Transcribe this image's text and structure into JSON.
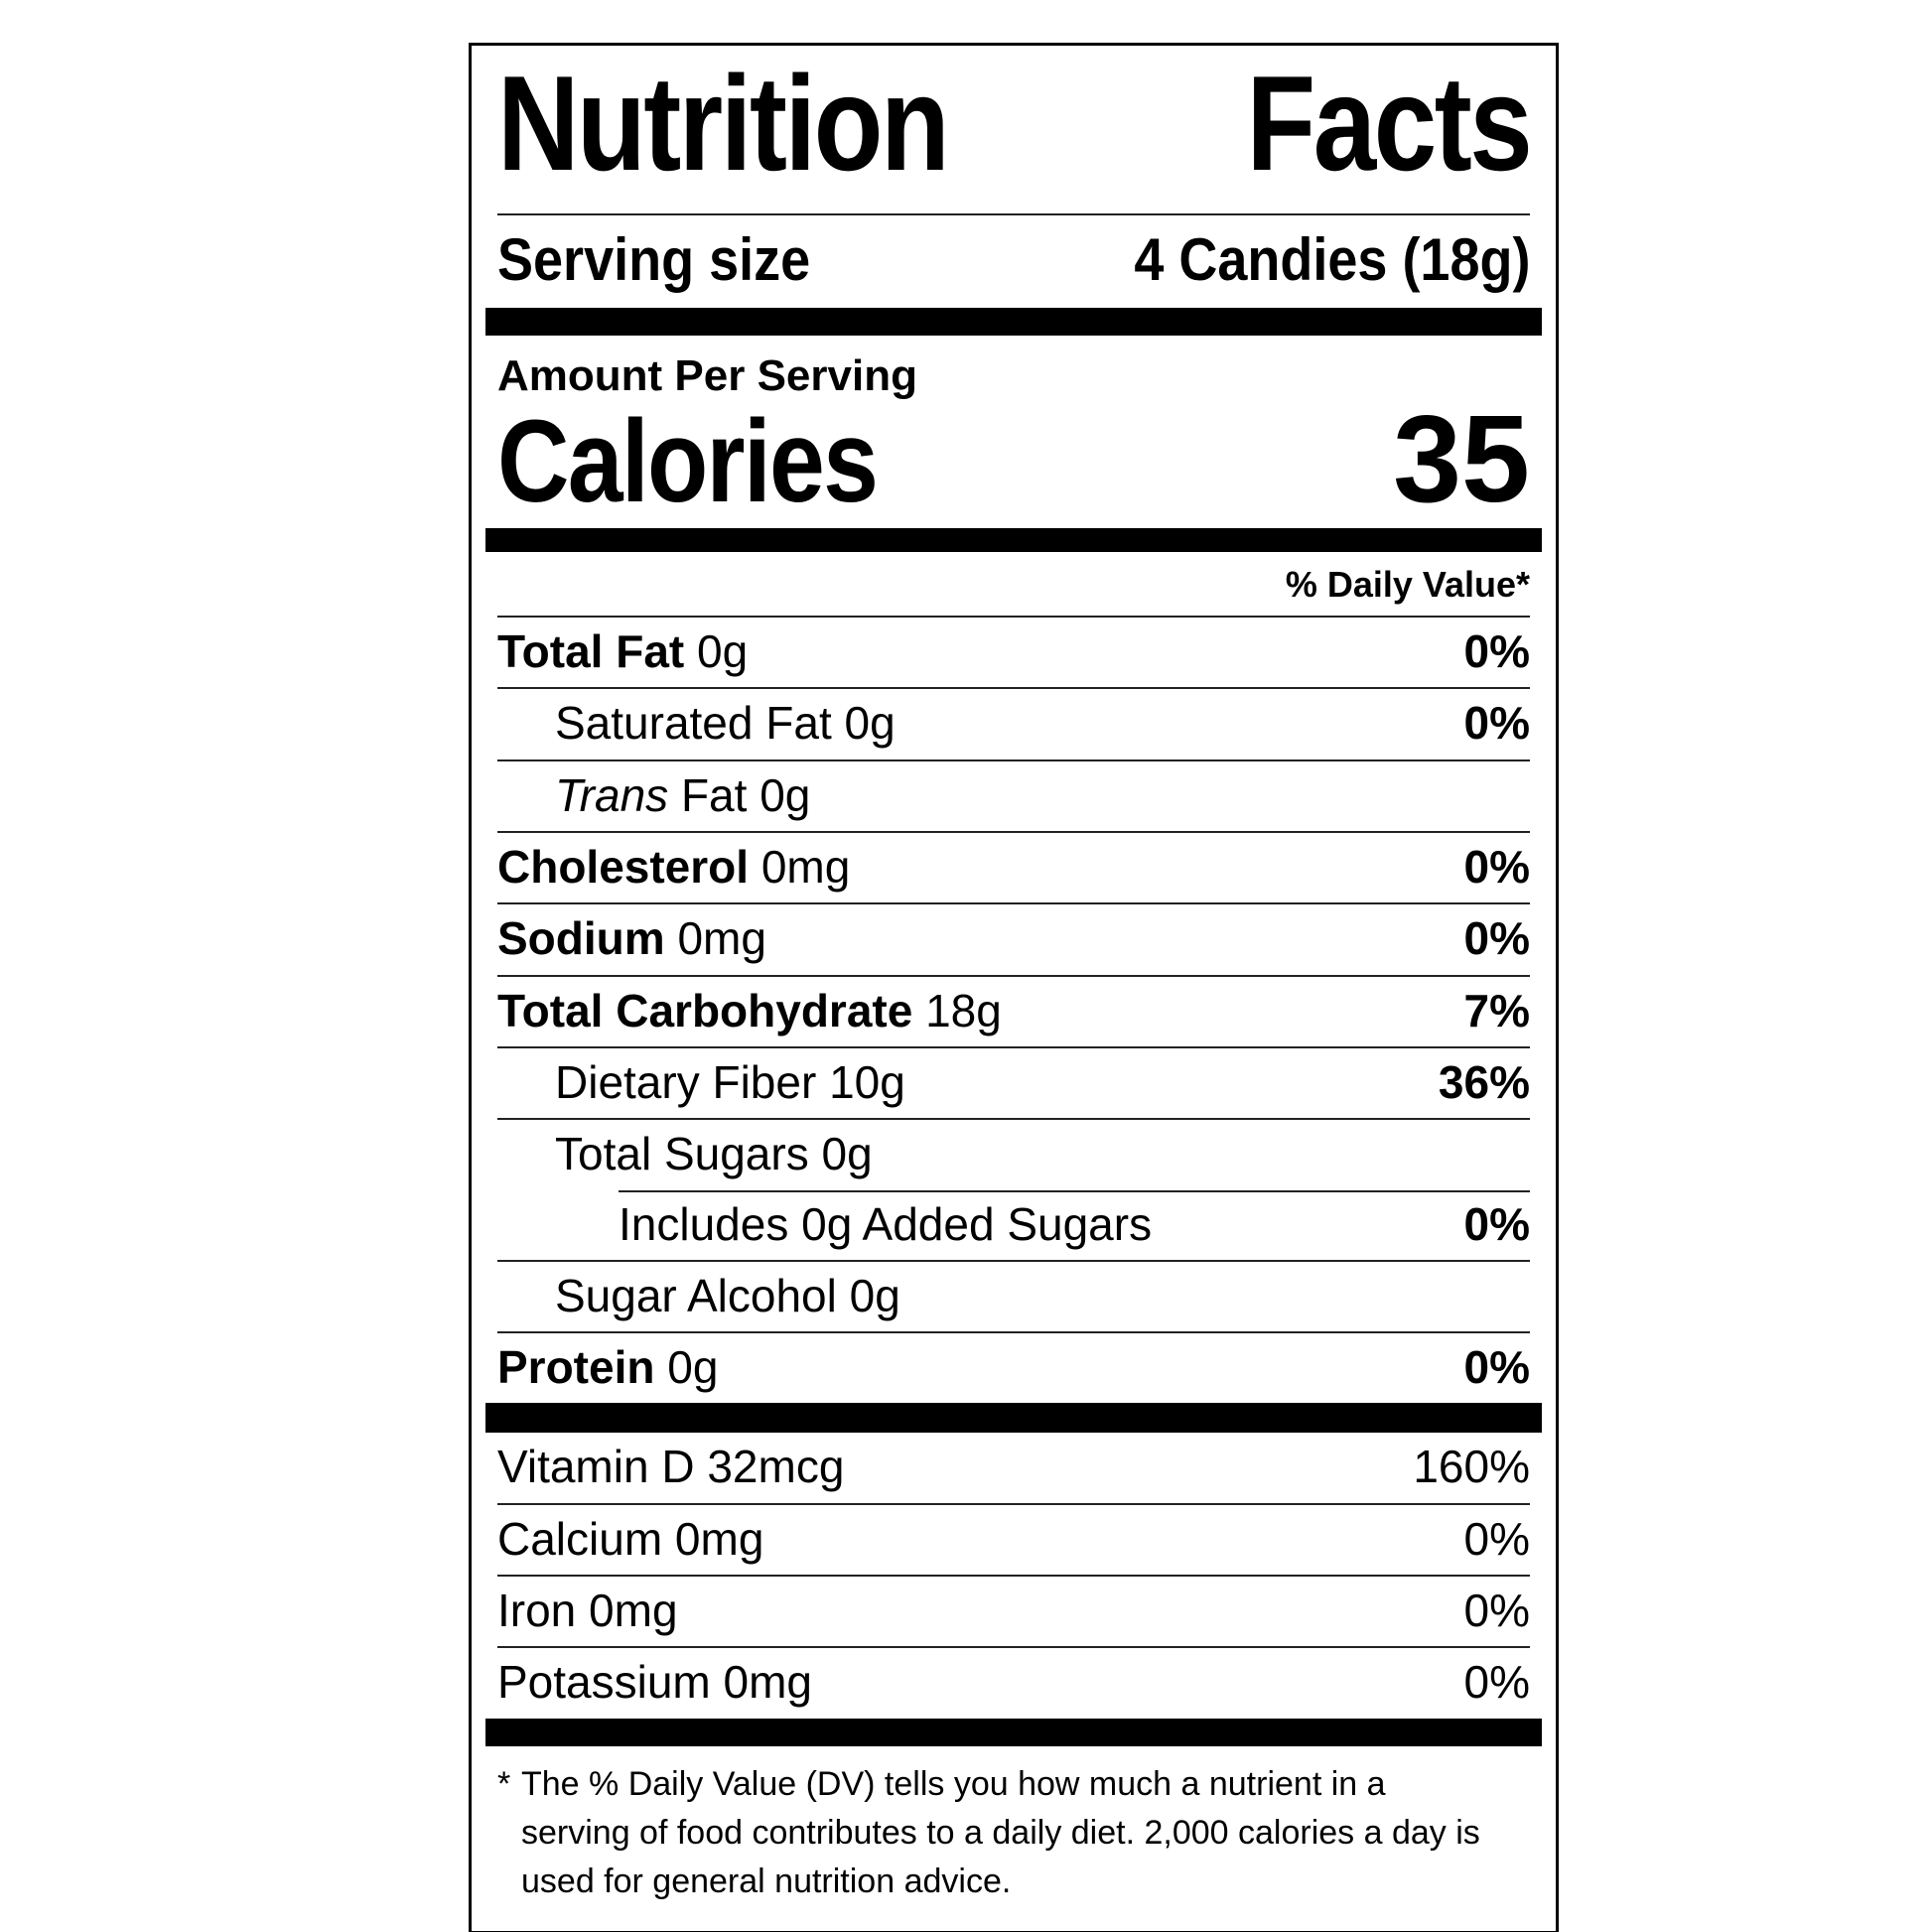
{
  "title": {
    "word1": "Nutrition",
    "word2": "Facts"
  },
  "serving": {
    "label": "Serving size",
    "value": "4 Candies (18g)"
  },
  "amount_heading": "Amount Per Serving",
  "calories": {
    "label": "Calories",
    "value": "35"
  },
  "daily_value_header": "% Daily Value*",
  "nutrients": [
    {
      "name": "Total Fat",
      "value": "0g",
      "dv": "0%",
      "style": "bold",
      "indent": 0
    },
    {
      "name": "Saturated Fat",
      "value": "0g",
      "dv": "0%",
      "style": "regular",
      "indent": 1
    },
    {
      "name": "Trans",
      "value": "Fat 0g",
      "dv": "",
      "style": "italic",
      "indent": 1
    },
    {
      "name": "Cholesterol",
      "value": "0mg",
      "dv": "0%",
      "style": "bold",
      "indent": 0
    },
    {
      "name": "Sodium",
      "value": "0mg",
      "dv": "0%",
      "style": "bold",
      "indent": 0
    },
    {
      "name": "Total Carbohydrate",
      "value": "18g",
      "dv": "7%",
      "style": "bold",
      "indent": 0
    },
    {
      "name": "Dietary Fiber",
      "value": "10g",
      "dv": "36%",
      "style": "regular",
      "indent": 1
    },
    {
      "name": "Total Sugars",
      "value": "0g",
      "dv": "",
      "style": "regular",
      "indent": 1
    },
    {
      "name": "Includes 0g Added Sugars",
      "value": "",
      "dv": "0%",
      "style": "regular",
      "indent": 2,
      "rule": "indent"
    },
    {
      "name": "Sugar Alcohol",
      "value": "0g",
      "dv": "",
      "style": "regular",
      "indent": 1
    },
    {
      "name": "Protein",
      "value": "0g",
      "dv": "0%",
      "style": "bold",
      "indent": 0
    }
  ],
  "vitamins": [
    {
      "name": "Vitamin D 32mcg",
      "dv": "160%"
    },
    {
      "name": "Calcium 0mg",
      "dv": "0%"
    },
    {
      "name": "Iron 0mg",
      "dv": "0%"
    },
    {
      "name": "Potassium 0mg",
      "dv": "0%"
    }
  ],
  "footnote": {
    "asterisk": "*",
    "text": "The % Daily Value (DV) tells you how much a nutrient in a serving of food contributes to a daily diet. 2,000 calories a day is used for general nutrition advice."
  },
  "colors": {
    "text": "#000000",
    "background": "#ffffff",
    "bar": "#000000"
  }
}
